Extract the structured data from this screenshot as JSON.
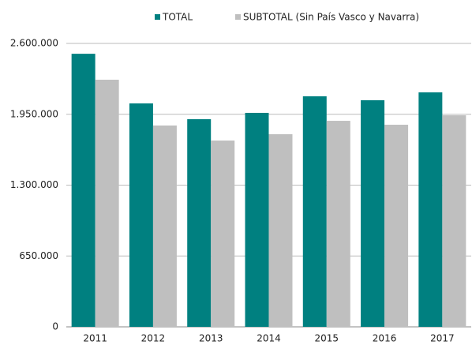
{
  "chart_data": {
    "type": "bar",
    "categories": [
      "2011",
      "2012",
      "2013",
      "2014",
      "2015",
      "2016",
      "2017"
    ],
    "series": [
      {
        "name": "TOTAL",
        "color": "#008080",
        "values": [
          2505000,
          2050000,
          1905000,
          1963000,
          2115000,
          2079000,
          2151000
        ]
      },
      {
        "name": "SUBTOTAL (Sin País Vasco y Navarra)",
        "color": "#bfbfbf",
        "values": [
          2267000,
          1847000,
          1709000,
          1767000,
          1890000,
          1854000,
          1941000
        ]
      }
    ],
    "ylim": [
      0,
      2600000
    ],
    "yticks": [
      0,
      {
        "value": 650000,
        "label": "650.000"
      },
      {
        "value": 1300000,
        "label": "1.300.000"
      },
      {
        "value": 1950000,
        "label": "1.950.000"
      },
      {
        "value": 2600000,
        "label": "2.600.000"
      }
    ],
    "grid": true,
    "legend": "top"
  }
}
